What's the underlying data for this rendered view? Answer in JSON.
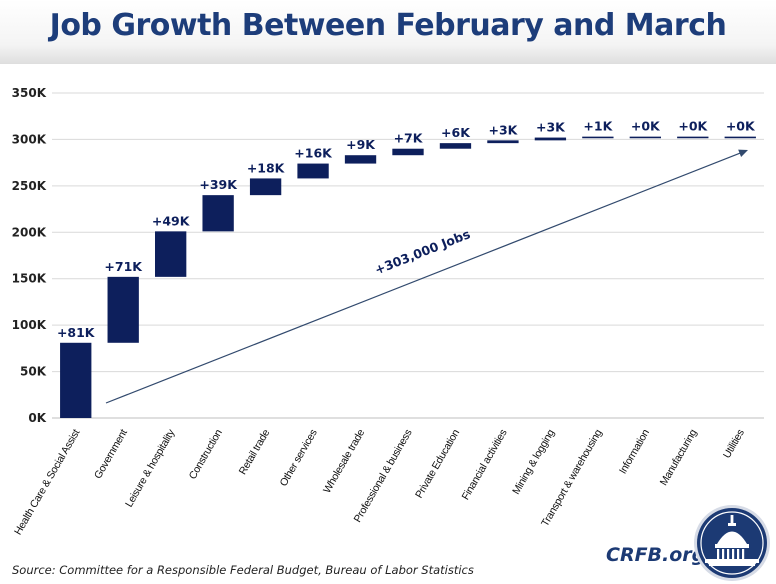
{
  "title": "Job Growth Between February and March",
  "source": "Source: Committee for a Responsible Federal Budget, Bureau of Labor Statistics",
  "brand": "CRFB.org",
  "seal_icon": "capitol-dome-icon",
  "colors": {
    "bar": "#0d1f5c",
    "title": "#1d3d7a",
    "arrow": "#324a6e",
    "grid": "#d9d9d9"
  },
  "chart_data": {
    "type": "bar",
    "subtype": "waterfall",
    "title": "Job Growth Between February and March",
    "xlabel": "",
    "ylabel": "",
    "ylim": [
      0,
      350
    ],
    "yticks": [
      0,
      50,
      100,
      150,
      200,
      250,
      300,
      350
    ],
    "ytick_labels": [
      "0K",
      "50K",
      "100K",
      "150K",
      "200K",
      "250K",
      "300K",
      "350K"
    ],
    "grid": true,
    "categories": [
      "Health Care & Social Assist",
      "Government",
      "Leisure & hospitality",
      "Construction",
      "Retail trade",
      "Other services",
      "Wholesale trade",
      "Professional & business",
      "Private Education",
      "Financial activities",
      "Mining & logging",
      "Transport & warehousing",
      "Information",
      "Manufacturing",
      "Utilities"
    ],
    "values": [
      81,
      71,
      49,
      39,
      18,
      16,
      9,
      7,
      6,
      3,
      3,
      1,
      0,
      0,
      0
    ],
    "value_labels": [
      "+81K",
      "+71K",
      "+49K",
      "+39K",
      "+18K",
      "+16K",
      "+9K",
      "+7K",
      "+6K",
      "+3K",
      "+3K",
      "+1K",
      "+0K",
      "+0K",
      "+0K"
    ],
    "annotation": "+303,000 Jobs"
  }
}
